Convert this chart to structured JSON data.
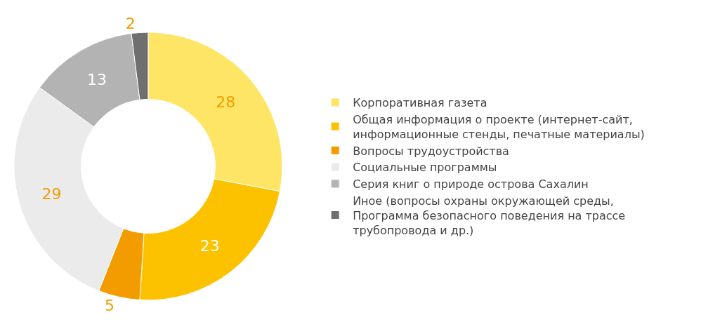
{
  "chart_data": {
    "type": "donut",
    "categories": [
      "Корпоративная газета",
      "Общая информация о проекте (интернет-сайт, информационные стенды, печатные материалы)",
      "Вопросы трудоустройства",
      "Социальные программы",
      "Серия книг о природе острова Сахалин",
      "Иное (вопросы охраны окружающей среды, Программа безопасного поведения на трассе трубопровода и др.)"
    ],
    "values": [
      28,
      23,
      5,
      29,
      13,
      2
    ],
    "colors": [
      "#ffe566",
      "#fcc200",
      "#f39c00",
      "#ebebeb",
      "#b3b3b3",
      "#6f6f6f"
    ],
    "data_labels": true,
    "legend": "right"
  }
}
